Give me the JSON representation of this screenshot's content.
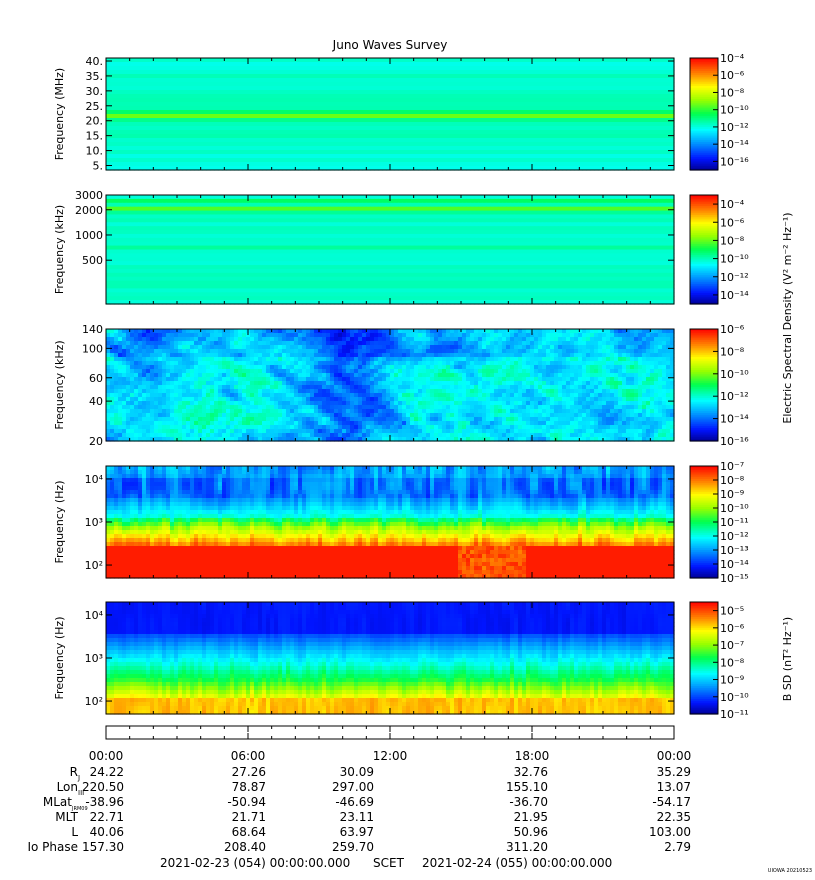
{
  "title": "Juno Waves Survey",
  "footer_left": "2021-02-23 (054) 00:00:00.000",
  "footer_mid": "SCET",
  "footer_right": "2021-02-24 (055) 00:00:00.000",
  "credit": "UIOWA 20210523",
  "colorbar_labels": {
    "electric": "Electric Spectral Density (V² m⁻² Hz⁻¹)",
    "magnetic": "B SD (nT² Hz⁻¹)"
  },
  "chart_data": [
    {
      "type": "heatmap",
      "ylabel": "Frequency (MHz)",
      "yscale": "linear",
      "ylim": [
        3.5,
        41
      ],
      "yticks": [
        "40.",
        "35.",
        "30.",
        "25.",
        "20.",
        "15.",
        "10.",
        "5."
      ],
      "ytick_values": [
        40,
        35,
        30,
        25,
        20,
        15,
        10,
        5
      ],
      "colorbar_ticks": [
        "10⁻⁴",
        "10⁻⁶",
        "10⁻⁸",
        "10⁻¹⁰",
        "10⁻¹²",
        "10⁻¹⁴",
        "10⁻¹⁶"
      ],
      "colorbar_range": [
        -17,
        -4
      ],
      "description": "uniform background with a bright band near 21 MHz"
    },
    {
      "type": "heatmap",
      "ylabel": "Frequency (kHz)",
      "yscale": "log",
      "ylim": [
        150,
        3000
      ],
      "yticks": [
        "3000",
        "2000",
        "1000",
        "500"
      ],
      "ytick_values": [
        3000,
        2000,
        1000,
        500
      ],
      "colorbar_ticks": [
        "10⁻⁴",
        "10⁻⁶",
        "10⁻⁸",
        "10⁻¹⁰",
        "10⁻¹²",
        "10⁻¹⁴"
      ],
      "colorbar_range": [
        -15,
        -3
      ],
      "description": "uniform background with bands near 2000 and 700 kHz"
    },
    {
      "type": "heatmap",
      "ylabel": "Frequency (kHz)",
      "yscale": "log",
      "ylim": [
        20,
        140
      ],
      "yticks": [
        "140",
        "100",
        "60",
        "40",
        "20"
      ],
      "ytick_values": [
        140,
        100,
        60,
        40,
        20
      ],
      "colorbar_ticks": [
        "10⁻⁶",
        "10⁻⁸",
        "10⁻¹⁰",
        "10⁻¹²",
        "10⁻¹⁴",
        "10⁻¹⁶"
      ],
      "colorbar_range": [
        -16,
        -6
      ],
      "description": "patchy blue/cyan with diagonal green streaks"
    },
    {
      "type": "heatmap",
      "ylabel": "Frequency (Hz)",
      "yscale": "log",
      "ylim": [
        50,
        20000
      ],
      "yticks": [
        "10⁴",
        "10³",
        "10²"
      ],
      "ytick_values": [
        10000,
        1000,
        100
      ],
      "colorbar_ticks": [
        "10⁻⁷",
        "10⁻⁸",
        "10⁻⁹",
        "10⁻¹⁰",
        "10⁻¹¹",
        "10⁻¹²",
        "10⁻¹³",
        "10⁻¹⁴",
        "10⁻¹⁵"
      ],
      "colorbar_range": [
        -15,
        -7
      ],
      "description": "intense red at low frequency fading to blue above ~3 kHz"
    },
    {
      "type": "heatmap",
      "ylabel": "Frequency (Hz)",
      "yscale": "log",
      "ylim": [
        50,
        20000
      ],
      "yticks": [
        "10⁴",
        "10³",
        "10²"
      ],
      "ytick_values": [
        10000,
        1000,
        100
      ],
      "colorbar_ticks": [
        "10⁻⁵",
        "10⁻⁶",
        "10⁻⁷",
        "10⁻⁸",
        "10⁻⁹",
        "10⁻¹⁰",
        "10⁻¹¹"
      ],
      "colorbar_range": [
        -11,
        -4.5
      ],
      "description": "yellow/orange below 200 Hz, green mid-band, blue above 3 kHz"
    }
  ],
  "ephemeris": {
    "times": [
      "00:00",
      "06:00",
      "12:00",
      "18:00",
      "00:00"
    ],
    "rows": [
      {
        "label": "R",
        "sub": "J",
        "values": [
          "24.22",
          "27.26",
          "30.09",
          "32.76",
          "35.29"
        ]
      },
      {
        "label": "Lon",
        "sub": "III",
        "values": [
          "220.50",
          "78.87",
          "297.00",
          "155.10",
          "13.07"
        ]
      },
      {
        "label": "MLat",
        "sub": "JRM09",
        "values": [
          "-38.96",
          "-50.94",
          "-46.69",
          "-36.70",
          "-54.17"
        ]
      },
      {
        "label": "MLT",
        "sub": "",
        "values": [
          "22.71",
          "21.71",
          "23.11",
          "21.95",
          "22.35"
        ]
      },
      {
        "label": "L",
        "sub": "",
        "values": [
          "40.06",
          "68.64",
          "63.97",
          "50.96",
          "103.00"
        ]
      },
      {
        "label": "Io Phase",
        "sub": "",
        "values": [
          "157.30",
          "208.40",
          "259.70",
          "311.20",
          "2.79"
        ]
      }
    ]
  }
}
